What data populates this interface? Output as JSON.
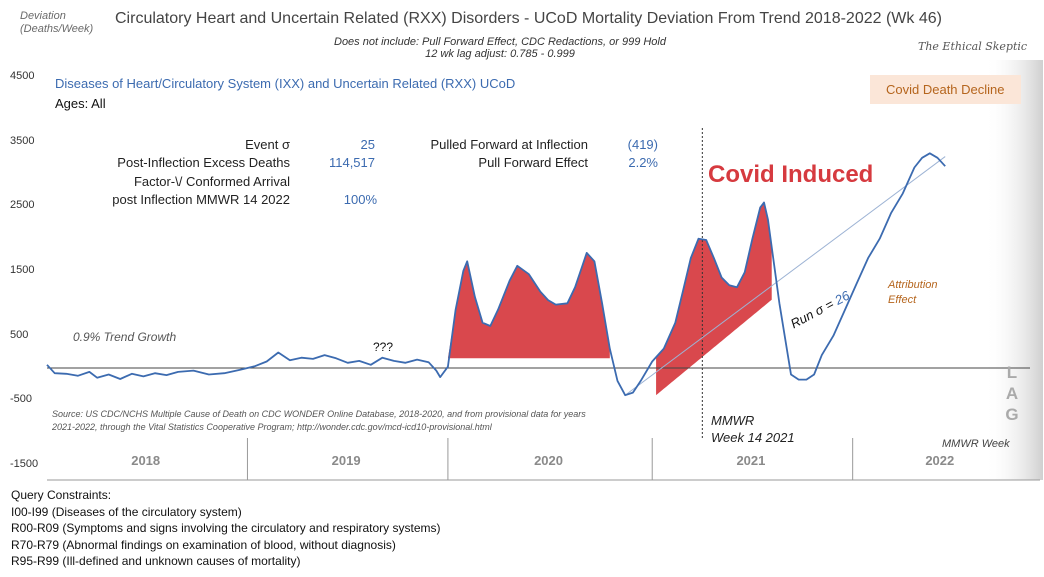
{
  "header": {
    "y_axis_label_line1": "Deviation",
    "y_axis_label_line2": "(Deaths/Week)",
    "title": "Circulatory Heart and Uncertain Related (RXX) Disorders - UCoD Mortality Deviation From Trend  2018-2022 (Wk 46)",
    "subtitle_line1": "Does not include: Pull Forward Effect,  CDC Redactions, or 999 Hold",
    "subtitle_line2": "12 wk lag adjust: 0.785 - 0.999",
    "brand": "The Ethical Skeptic"
  },
  "legend": {
    "series_name": "Diseases of Heart/Circulatory System (IXX) and Uncertain Related (RXX) UCoD",
    "ages": "Ages: All",
    "covid_decline_badge": "Covid Death Decline"
  },
  "stats": {
    "event_sigma_label": "Event σ",
    "event_sigma_value": "25",
    "excess_label": "Post-Inflection Excess Deaths",
    "excess_value": "114,517",
    "factor_label_line1": "Factor-\\/ Conformed Arrival",
    "factor_label_line2": "post Inflection MMWR 14 2022",
    "factor_value": "100%",
    "pulled_label": "Pulled Forward at Inflection",
    "pulled_value": "(419)",
    "pull_effect_label": "Pull Forward Effect",
    "pull_effect_value": "2.2%"
  },
  "annotations": {
    "trend_growth": "0.9% Trend Growth",
    "unknown": "???",
    "covid_induced": "Covid Induced",
    "attribution_line1": "Attribution",
    "attribution_line2": "Effect",
    "run_sigma_prefix": "Run σ = ",
    "run_sigma_value": "26",
    "mmwr_line1": "MMWR",
    "mmwr_line2": "Week 14 2021",
    "mmwr_week": "MMWR Week",
    "lag_letters": [
      "L",
      "A",
      "G"
    ],
    "source_line1": "Source: US CDC/NCHS Multiple Cause of Death on CDC WONDER Online Database, 2018-2020, and from provisional data for years",
    "source_line2": "2021-2022, through the Vital Statistics Cooperative Program; http://wonder.cdc.gov/mcd-icd10-provisional.html"
  },
  "query": {
    "heading": "Query Constraints:",
    "lines": [
      "I00-I99 (Diseases of the circulatory system)",
      "R00-R09 (Symptoms and signs involving the circulatory and respiratory systems)",
      "R70-R79 (Abnormal findings on examination of blood, without diagnosis)",
      "R95-R99 (Ill-defined and unknown causes of mortality)"
    ]
  },
  "colors": {
    "series": "#3c6bb0",
    "fill": "#d63a3f",
    "badge_bg": "#fbe6d8",
    "attribution": "#b5651d"
  },
  "chart_data": {
    "type": "line",
    "title": "Circulatory Heart and Uncertain Related (RXX) Disorders - UCoD Mortality Deviation From Trend  2018-2022 (Wk 46)",
    "xlabel": "MMWR Week",
    "ylabel": "Deviation (Deaths/Week)",
    "ylim": [
      -1500,
      4500
    ],
    "yticks": [
      4500,
      3500,
      2500,
      1500,
      500,
      -500,
      -1500
    ],
    "x_min": 0,
    "x_max": 255,
    "years": [
      {
        "label": "2018",
        "start": 0
      },
      {
        "label": "2019",
        "start": 52
      },
      {
        "label": "2020",
        "start": 104
      },
      {
        "label": "2021",
        "start": 157
      },
      {
        "label": "2022",
        "start": 209
      }
    ],
    "event_week": 170,
    "series": [
      {
        "name": "Diseases of Heart/Circulatory System (IXX) and Uncertain Related (RXX) UCoD",
        "points": [
          [
            0,
            50
          ],
          [
            2,
            -80
          ],
          [
            5,
            -90
          ],
          [
            8,
            -120
          ],
          [
            11,
            -60
          ],
          [
            13,
            -150
          ],
          [
            16,
            -100
          ],
          [
            19,
            -170
          ],
          [
            22,
            -90
          ],
          [
            25,
            -130
          ],
          [
            28,
            -80
          ],
          [
            31,
            -110
          ],
          [
            34,
            -60
          ],
          [
            38,
            -40
          ],
          [
            42,
            -100
          ],
          [
            46,
            -80
          ],
          [
            50,
            -30
          ],
          [
            54,
            30
          ],
          [
            57,
            100
          ],
          [
            60,
            240
          ],
          [
            63,
            120
          ],
          [
            66,
            160
          ],
          [
            69,
            140
          ],
          [
            72,
            200
          ],
          [
            75,
            150
          ],
          [
            78,
            80
          ],
          [
            81,
            110
          ],
          [
            84,
            50
          ],
          [
            87,
            160
          ],
          [
            90,
            110
          ],
          [
            93,
            80
          ],
          [
            96,
            130
          ],
          [
            99,
            90
          ],
          [
            101,
            -40
          ],
          [
            102,
            -140
          ],
          [
            104,
            20
          ],
          [
            106,
            900
          ],
          [
            108,
            1500
          ],
          [
            109,
            1650
          ],
          [
            111,
            1100
          ],
          [
            113,
            700
          ],
          [
            115,
            650
          ],
          [
            117,
            900
          ],
          [
            120,
            1350
          ],
          [
            122,
            1580
          ],
          [
            125,
            1450
          ],
          [
            128,
            1180
          ],
          [
            130,
            1050
          ],
          [
            132,
            980
          ],
          [
            135,
            1000
          ],
          [
            137,
            1250
          ],
          [
            139,
            1600
          ],
          [
            140,
            1780
          ],
          [
            142,
            1650
          ],
          [
            144,
            1000
          ],
          [
            146,
            300
          ],
          [
            148,
            -200
          ],
          [
            150,
            -420
          ],
          [
            152,
            -380
          ],
          [
            154,
            -200
          ],
          [
            157,
            100
          ],
          [
            160,
            300
          ],
          [
            163,
            700
          ],
          [
            165,
            1200
          ],
          [
            167,
            1700
          ],
          [
            169,
            2000
          ],
          [
            171,
            1980
          ],
          [
            173,
            1700
          ],
          [
            175,
            1400
          ],
          [
            177,
            1280
          ],
          [
            179,
            1250
          ],
          [
            181,
            1480
          ],
          [
            183,
            2000
          ],
          [
            185,
            2480
          ],
          [
            186,
            2560
          ],
          [
            187,
            2300
          ],
          [
            190,
            1000
          ],
          [
            193,
            -100
          ],
          [
            195,
            -180
          ],
          [
            197,
            -180
          ],
          [
            199,
            -100
          ],
          [
            201,
            200
          ],
          [
            204,
            500
          ],
          [
            207,
            900
          ],
          [
            210,
            1300
          ],
          [
            213,
            1700
          ],
          [
            216,
            2000
          ],
          [
            219,
            2400
          ],
          [
            222,
            2700
          ],
          [
            225,
            3100
          ],
          [
            227,
            3250
          ],
          [
            229,
            3320
          ],
          [
            231,
            3250
          ],
          [
            233,
            3120
          ]
        ]
      },
      {
        "name": "Trend Baseline",
        "points": [
          [
            150,
            -420
          ],
          [
            233,
            3270
          ]
        ]
      }
    ],
    "covid_induced_fill_segments": [
      {
        "from_week": 104,
        "to_week": 146,
        "baseline": 150
      },
      {
        "from_week": 158,
        "to_week": 188,
        "baseline_from": [
          158,
          -420
        ],
        "baseline_to": [
          233,
          3270
        ]
      }
    ]
  }
}
